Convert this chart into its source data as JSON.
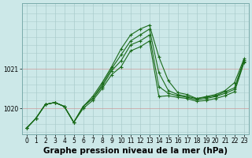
{
  "title": "Graphe pression niveau de la mer (hPa)",
  "bg_color": "#cce8e8",
  "line_color": "#1a6b1a",
  "marker_color": "#1a6b1a",
  "grid_color_v": "#aacccc",
  "grid_color_h_minor": "#aacccc",
  "grid_color_h_major": "#cc9999",
  "x_labels": [
    0,
    1,
    2,
    3,
    4,
    5,
    6,
    7,
    8,
    9,
    10,
    11,
    12,
    13,
    14,
    15,
    16,
    17,
    18,
    19,
    20,
    21,
    22,
    23
  ],
  "y_ticks": [
    1020,
    1021
  ],
  "ylim": [
    1019.35,
    1022.65
  ],
  "xlim": [
    -0.5,
    23.5
  ],
  "series": [
    [
      1019.5,
      1019.75,
      1020.1,
      1020.15,
      1020.05,
      1019.65,
      1020.05,
      1020.3,
      1020.65,
      1021.05,
      1021.5,
      1021.85,
      1022.0,
      1022.1,
      1021.3,
      1020.7,
      1020.4,
      1020.35,
      1020.25,
      1020.3,
      1020.35,
      1020.45,
      1020.65,
      1021.25
    ],
    [
      1019.5,
      1019.75,
      1020.1,
      1020.15,
      1020.05,
      1019.65,
      1020.05,
      1020.25,
      1020.6,
      1021.0,
      1021.35,
      1021.7,
      1021.85,
      1022.0,
      1020.9,
      1020.45,
      1020.35,
      1020.3,
      1020.25,
      1020.28,
      1020.32,
      1020.42,
      1020.52,
      1021.22
    ],
    [
      1019.5,
      1019.75,
      1020.1,
      1020.15,
      1020.05,
      1019.65,
      1020.05,
      1020.25,
      1020.55,
      1020.95,
      1021.2,
      1021.6,
      1021.7,
      1021.85,
      1020.55,
      1020.38,
      1020.32,
      1020.28,
      1020.22,
      1020.25,
      1020.3,
      1020.38,
      1020.48,
      1021.18
    ],
    [
      1019.5,
      1019.75,
      1020.1,
      1020.15,
      1020.05,
      1019.65,
      1020.0,
      1020.2,
      1020.5,
      1020.85,
      1021.05,
      1021.45,
      1021.55,
      1021.7,
      1020.3,
      1020.32,
      1020.28,
      1020.25,
      1020.18,
      1020.2,
      1020.25,
      1020.32,
      1020.42,
      1021.15
    ]
  ],
  "title_fontsize": 7.5,
  "tick_fontsize": 5.5
}
